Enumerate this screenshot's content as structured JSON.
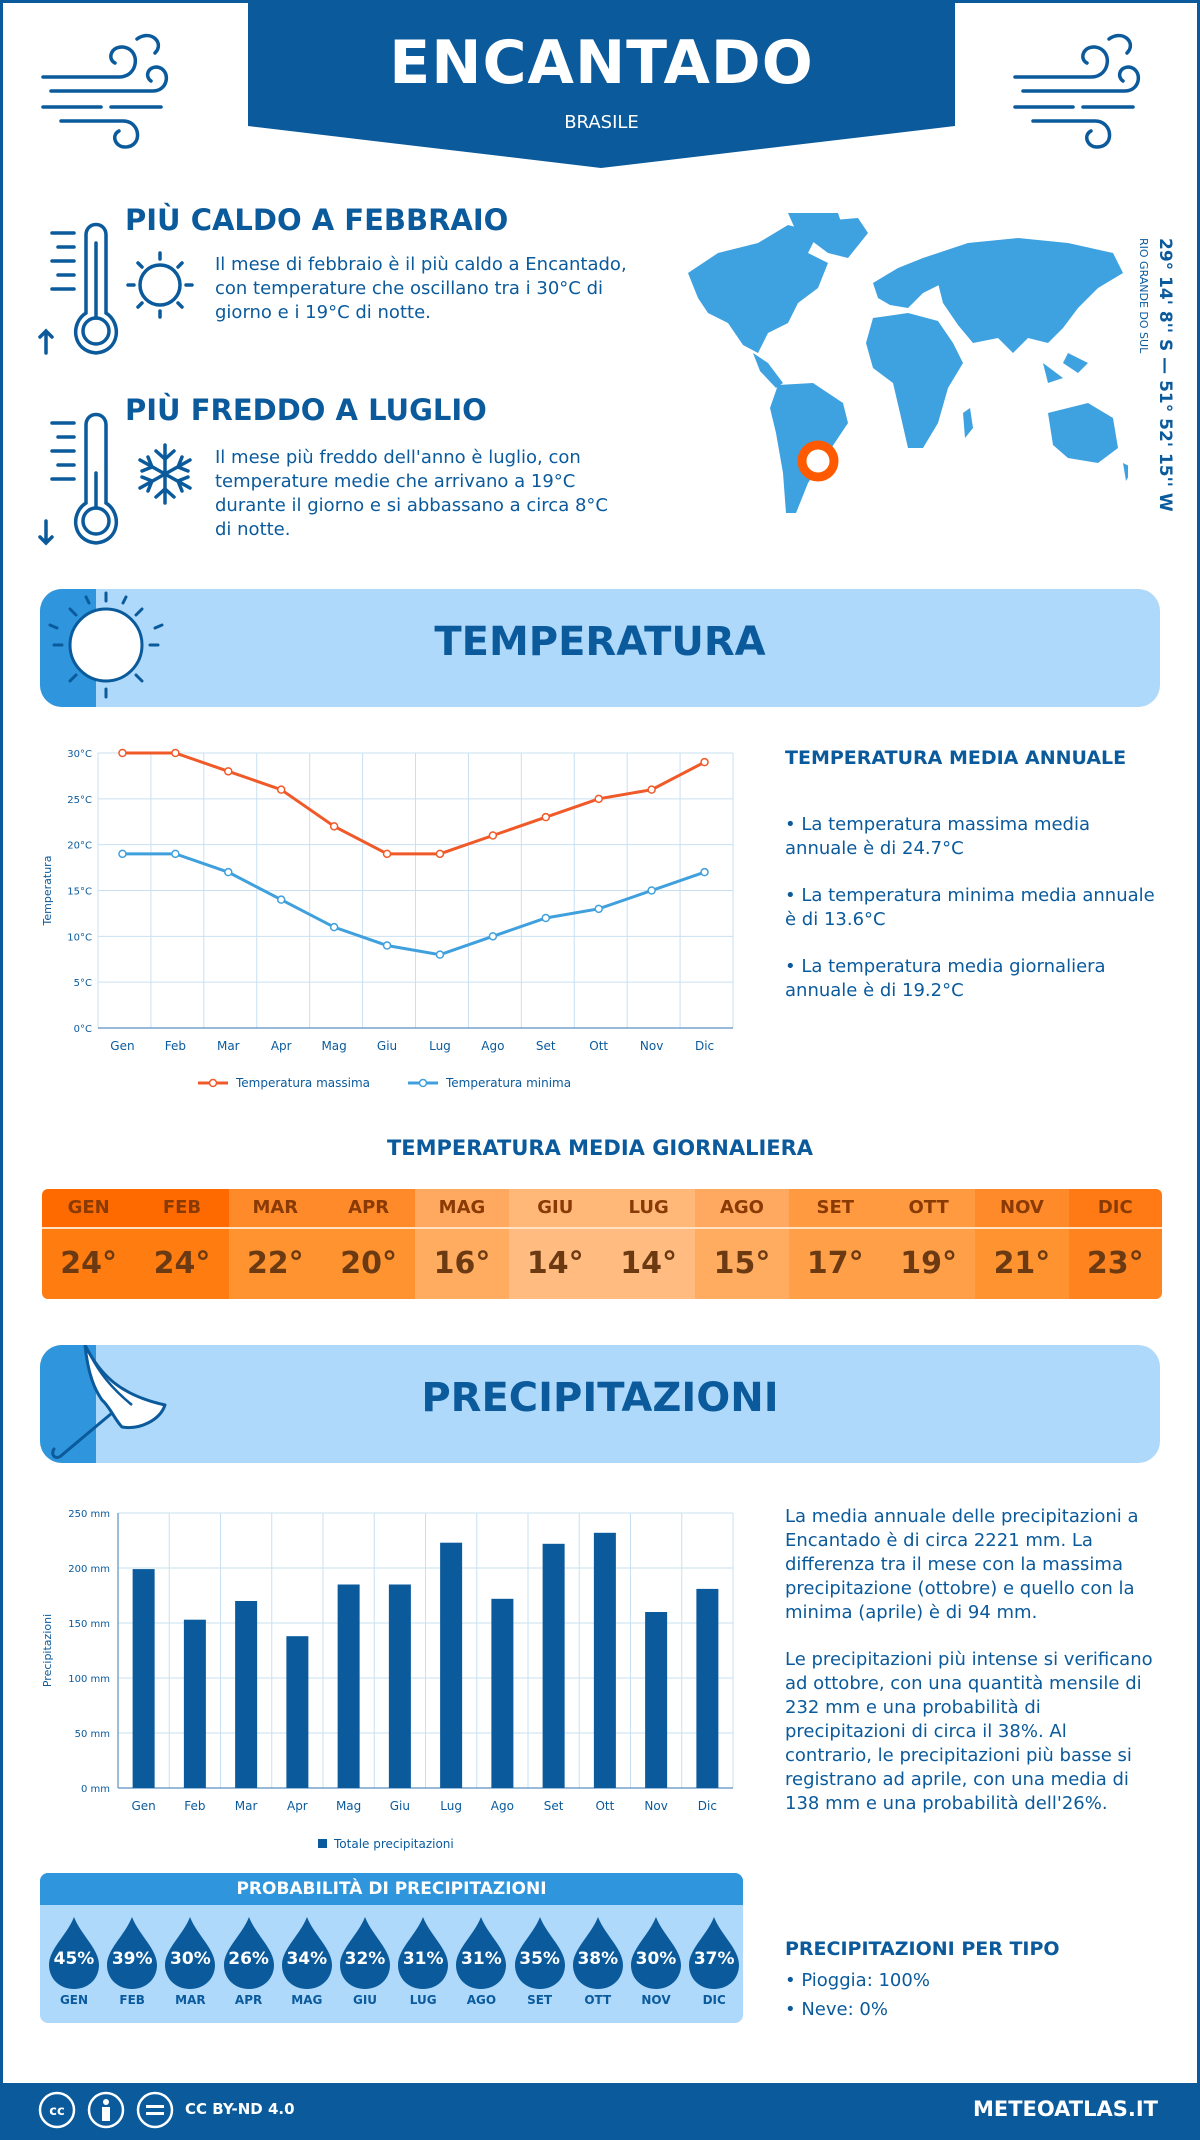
{
  "header": {
    "city": "ENCANTADO",
    "country": "BRASILE"
  },
  "coords": {
    "text": "29° 14' 8'' S — 51° 52' 15'' W",
    "region": "RIO GRANDE DO SUL"
  },
  "hottest": {
    "title": "PIÙ CALDO A FEBBRAIO",
    "lines": [
      "Il mese di febbraio è il più caldo a Encantado,",
      "con temperature che oscillano tra i 30°C di",
      "giorno e i 19°C di notte."
    ]
  },
  "coldest": {
    "title": "PIÙ FREDDO A LUGLIO",
    "lines": [
      "Il mese più freddo dell'anno è luglio, con",
      "temperature medie che arrivano a 19°C",
      "durante il giorno e si abbassano a circa 8°C",
      "di notte."
    ]
  },
  "temp_section": {
    "title": "TEMPERATURA"
  },
  "temp_annual": {
    "title": "TEMPERATURA MEDIA ANNUALE",
    "p1": [
      "• La temperatura massima media",
      "annuale è di 24.7°C"
    ],
    "p2": [
      "• La temperatura minima media annuale",
      "è di 13.6°C"
    ],
    "p3": [
      "• La temperatura media giornaliera",
      "annuale è di 19.2°C"
    ]
  },
  "daily": {
    "title": "TEMPERATURA MEDIA GIORNALIERA",
    "months": [
      "GEN",
      "FEB",
      "MAR",
      "APR",
      "MAG",
      "GIU",
      "LUG",
      "AGO",
      "SET",
      "OTT",
      "NOV",
      "DIC"
    ],
    "values": [
      "24°",
      "24°",
      "22°",
      "20°",
      "16°",
      "14°",
      "14°",
      "15°",
      "17°",
      "19°",
      "21°",
      "23°"
    ],
    "head_colors": [
      "#ff6a00",
      "#ff6a00",
      "#ff8a2a",
      "#ff8a2a",
      "#ffa860",
      "#ffb878",
      "#ffb878",
      "#ffa860",
      "#ff9a40",
      "#ff9a40",
      "#ff8a2a",
      "#ff7a14"
    ],
    "body_colors": [
      "#ff7d10",
      "#ff7d10",
      "#ff9330",
      "#ff9330",
      "#ffac60",
      "#ffbb80",
      "#ffbb80",
      "#ffac60",
      "#ffa048",
      "#ffa048",
      "#ff9330",
      "#ff8420"
    ]
  },
  "precip_section": {
    "title": "PRECIPITAZIONI"
  },
  "precip_text": {
    "p1": [
      "La media annuale delle precipitazioni a",
      "Encantado è di circa 2221 mm. La",
      "differenza tra il mese con la massima",
      "precipitazione (ottobre) e quello con la",
      "minima (aprile) è di 94 mm."
    ],
    "p2": [
      "Le precipitazioni più intense si verificano",
      "ad ottobre, con una quantità mensile di",
      "232 mm e una probabilità di",
      "precipitazioni di circa il 38%. Al",
      "contrario, le precipitazioni più basse si",
      "registrano ad aprile, con una media di",
      "138 mm e una probabilità dell'26%."
    ]
  },
  "probability": {
    "title": "PROBABILITÀ DI PRECIPITAZIONI",
    "months": [
      "GEN",
      "FEB",
      "MAR",
      "APR",
      "MAG",
      "GIU",
      "LUG",
      "AGO",
      "SET",
      "OTT",
      "NOV",
      "DIC"
    ],
    "values": [
      "45%",
      "39%",
      "30%",
      "26%",
      "34%",
      "32%",
      "31%",
      "31%",
      "35%",
      "38%",
      "30%",
      "37%"
    ]
  },
  "precip_type": {
    "title": "PRECIPITAZIONI PER TIPO",
    "rain": "• Pioggia: 100%",
    "snow": "• Neve: 0%"
  },
  "footer": {
    "license": "CC BY-ND 4.0",
    "site": "METEOATLAS.IT"
  },
  "chart_data": [
    {
      "type": "line",
      "categories": [
        "Gen",
        "Feb",
        "Mar",
        "Apr",
        "Mag",
        "Giu",
        "Lug",
        "Ago",
        "Set",
        "Ott",
        "Nov",
        "Dic"
      ],
      "series": [
        {
          "name": "Temperatura massima",
          "values": [
            30,
            30,
            28,
            26,
            22,
            19,
            19,
            21,
            23,
            25,
            26,
            29
          ],
          "color": "#f05a28"
        },
        {
          "name": "Temperatura minima",
          "values": [
            19,
            19,
            17,
            14,
            11,
            9,
            8,
            10,
            12,
            13,
            15,
            17
          ],
          "color": "#3fa0dd"
        }
      ],
      "ylabel": "Temperatura",
      "ylim": [
        0,
        30
      ],
      "yticks": [
        "0°C",
        "5°C",
        "10°C",
        "15°C",
        "20°C",
        "25°C",
        "30°C"
      ],
      "grid": true,
      "legend": "bottom"
    },
    {
      "type": "bar",
      "categories": [
        "Gen",
        "Feb",
        "Mar",
        "Apr",
        "Mag",
        "Giu",
        "Lug",
        "Ago",
        "Set",
        "Ott",
        "Nov",
        "Dic"
      ],
      "series": [
        {
          "name": "Totale precipitazioni",
          "values": [
            199,
            153,
            170,
            138,
            185,
            185,
            223,
            172,
            222,
            232,
            160,
            181
          ],
          "color": "#0a5a9c"
        }
      ],
      "ylabel": "Precipitazioni",
      "ylim": [
        0,
        250
      ],
      "yticks": [
        "0 mm",
        "50 mm",
        "100 mm",
        "150 mm",
        "200 mm",
        "250 mm"
      ],
      "grid": true,
      "legend": "bottom"
    }
  ]
}
